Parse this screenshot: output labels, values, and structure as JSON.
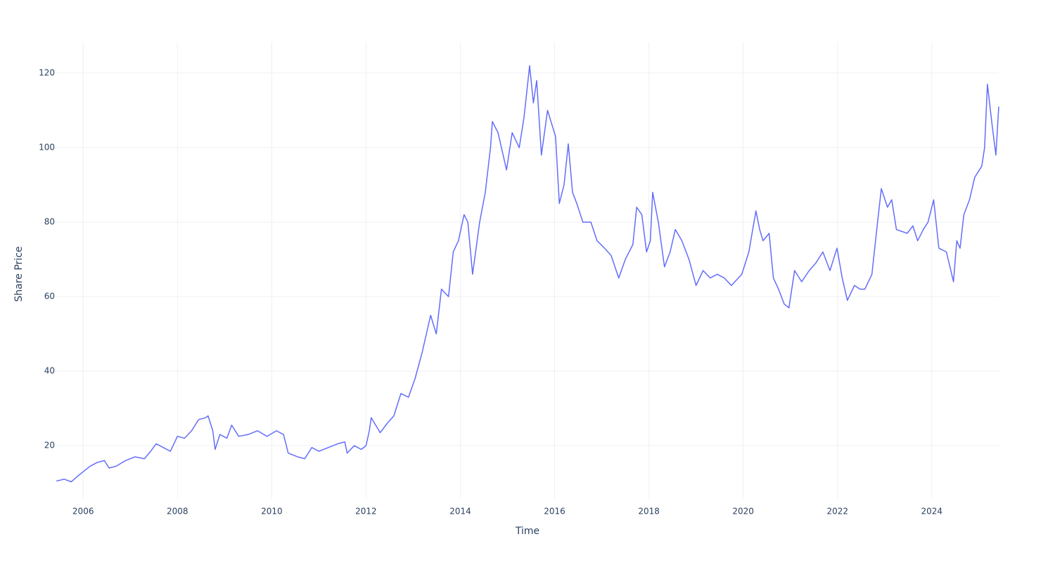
{
  "chart_data": {
    "type": "line",
    "x_label": "Time",
    "y_label": "Share Price",
    "color": "#636efa",
    "grid": true,
    "x": [
      2005.43,
      2005.6,
      2005.75,
      2005.9,
      2006.0,
      2006.15,
      2006.3,
      2006.45,
      2006.55,
      2006.7,
      2006.9,
      2007.1,
      2007.3,
      2007.4,
      2007.55,
      2007.7,
      2007.85,
      2008.0,
      2008.15,
      2008.3,
      2008.45,
      2008.6,
      2008.65,
      2008.75,
      2008.8,
      2008.9,
      2009.05,
      2009.15,
      2009.3,
      2009.5,
      2009.7,
      2009.9,
      2010.1,
      2010.25,
      2010.35,
      2010.55,
      2010.7,
      2010.85,
      2011.0,
      2011.2,
      2011.4,
      2011.55,
      2011.6,
      2011.75,
      2011.9,
      2012.0,
      2012.07,
      2012.11,
      2012.3,
      2012.45,
      2012.59,
      2012.74,
      2012.9,
      2013.04,
      2013.19,
      2013.37,
      2013.49,
      2013.6,
      2013.75,
      2013.85,
      2013.96,
      2014.08,
      2014.16,
      2014.26,
      2014.41,
      2014.53,
      2014.64,
      2014.68,
      2014.8,
      2014.98,
      2015.1,
      2015.25,
      2015.35,
      2015.47,
      2015.55,
      2015.62,
      2015.72,
      2015.85,
      2016.02,
      2016.1,
      2016.2,
      2016.29,
      2016.38,
      2016.47,
      2016.6,
      2016.77,
      2016.9,
      2017.06,
      2017.2,
      2017.36,
      2017.5,
      2017.66,
      2017.74,
      2017.85,
      2017.95,
      2018.03,
      2018.08,
      2018.2,
      2018.33,
      2018.45,
      2018.56,
      2018.7,
      2018.85,
      2019.0,
      2019.15,
      2019.3,
      2019.45,
      2019.6,
      2019.75,
      2019.97,
      2020.12,
      2020.27,
      2020.35,
      2020.42,
      2020.55,
      2020.64,
      2020.75,
      2020.87,
      2020.97,
      2021.09,
      2021.24,
      2021.4,
      2021.54,
      2021.69,
      2021.84,
      2021.99,
      2022.1,
      2022.21,
      2022.36,
      2022.48,
      2022.58,
      2022.73,
      2022.85,
      2022.93,
      2023.06,
      2023.15,
      2023.25,
      2023.48,
      2023.6,
      2023.7,
      2023.82,
      2023.92,
      2024.04,
      2024.15,
      2024.31,
      2024.46,
      2024.53,
      2024.6,
      2024.68,
      2024.8,
      2024.91,
      2025.06,
      2025.12,
      2025.18,
      2025.28,
      2025.36,
      2025.42
    ],
    "values": [
      10.5,
      11,
      10.3,
      12,
      13,
      14.5,
      15.5,
      16,
      14,
      14.5,
      16,
      17,
      16.5,
      18,
      20.5,
      19.5,
      18.5,
      22.5,
      22,
      24,
      27,
      27.5,
      28,
      24,
      19,
      23,
      22,
      25.5,
      22.5,
      23,
      24,
      22.5,
      24,
      23,
      18,
      17,
      16.5,
      19.5,
      18.5,
      19.5,
      20.5,
      21,
      18,
      20,
      19,
      20,
      24,
      27.5,
      23.5,
      26,
      28,
      34,
      33,
      38,
      45,
      55,
      50,
      62,
      60,
      72,
      75,
      82,
      80,
      66,
      80,
      88,
      100,
      107,
      104,
      94,
      104,
      100,
      108,
      122,
      112,
      118,
      98,
      110,
      103,
      85,
      90,
      101,
      88,
      85,
      80,
      80,
      75,
      73,
      71,
      65,
      70,
      74,
      84,
      82,
      72,
      75,
      88,
      80,
      68,
      72,
      78,
      75,
      70,
      63,
      67,
      65,
      66,
      65,
      63,
      66,
      72,
      83,
      78,
      75,
      77,
      65,
      62,
      58,
      57,
      67,
      64,
      67,
      69,
      72,
      67,
      73,
      65,
      59,
      63,
      62,
      62,
      66,
      80,
      89,
      84,
      86,
      78,
      77,
      79,
      75,
      78,
      80,
      86,
      73,
      72,
      64,
      75,
      73,
      82,
      86,
      92,
      95,
      100,
      117,
      106,
      98,
      111
    ],
    "xlim": [
      2005.43,
      2025.42
    ],
    "ylim": [
      5.7,
      128.3
    ],
    "xticks": [
      2006,
      2008,
      2010,
      2012,
      2014,
      2016,
      2018,
      2020,
      2022,
      2024
    ],
    "yticks": [
      20,
      40,
      60,
      80,
      100,
      120
    ]
  }
}
